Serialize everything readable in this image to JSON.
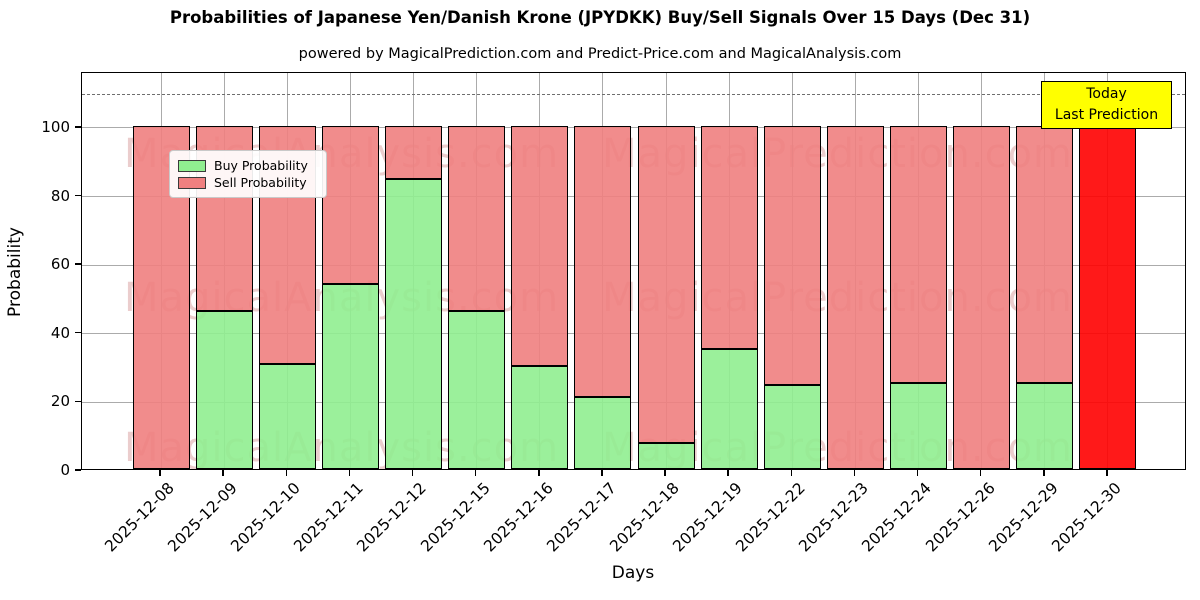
{
  "chart_data": {
    "type": "bar",
    "stacked": true,
    "title": "Probabilities of Japanese Yen/Danish Krone (JPYDKK) Buy/Sell Signals Over 15 Days (Dec 31)",
    "subtitle": "powered by MagicalPrediction.com and Predict-Price.com and MagicalAnalysis.com",
    "xlabel": "Days",
    "ylabel": "Probability",
    "categories": [
      "2025-12-08",
      "2025-12-09",
      "2025-12-10",
      "2025-12-11",
      "2025-12-12",
      "2025-12-15",
      "2025-12-16",
      "2025-12-17",
      "2025-12-18",
      "2025-12-19",
      "2025-12-22",
      "2025-12-23",
      "2025-12-24",
      "2025-12-26",
      "2025-12-29",
      "2025-12-30"
    ],
    "series": [
      {
        "name": "Buy Probability",
        "color": "#90ee90",
        "values": [
          0,
          46,
          30.5,
          54,
          84.5,
          46,
          30,
          21,
          7.5,
          35,
          24.5,
          0,
          25,
          0,
          25,
          0
        ]
      },
      {
        "name": "Sell Probability",
        "color": "#f08080",
        "values": [
          100,
          54,
          69.5,
          46,
          15.5,
          54,
          70,
          79,
          92.5,
          65,
          75.5,
          100,
          75,
          100,
          75,
          100
        ]
      }
    ],
    "last_bar_sell_color": "#ff0000",
    "bar_edge_color": "#000000",
    "ylim": [
      0,
      116
    ],
    "yticks": [
      0,
      20,
      40,
      60,
      80,
      100
    ],
    "dashed_line_y": 110,
    "grid": true,
    "legend_position": "upper left",
    "annotation": {
      "line1": "Today",
      "line2": "Last Prediction",
      "bg_color": "#ffff00"
    },
    "watermarks": [
      "MagicalAnalysis.com",
      "MagicalPrediction.com"
    ]
  }
}
